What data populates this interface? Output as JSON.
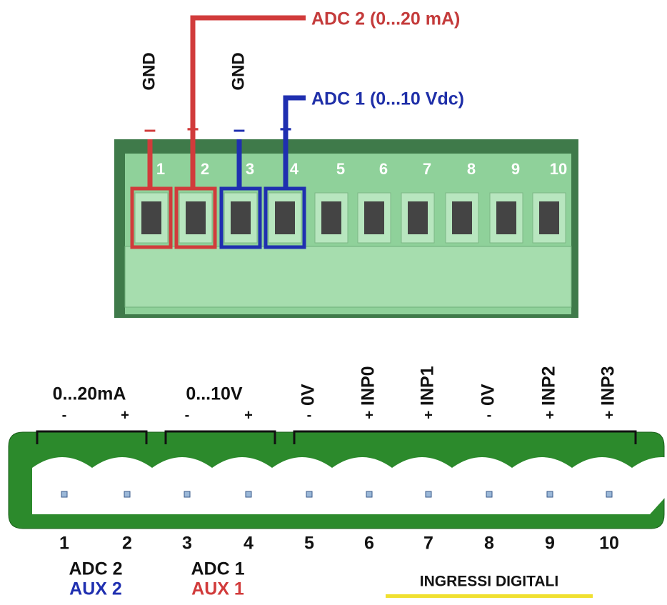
{
  "top": {
    "adc2_label": "ADC 2  (0...20 mA)",
    "adc1_label": "ADC 1 (0...10 Vdc)",
    "gnd_labels": [
      "GND",
      "GND"
    ],
    "polarity": [
      "–",
      "+",
      "–",
      "+"
    ],
    "terminals": [
      "1",
      "2",
      "3",
      "4",
      "5",
      "6",
      "7",
      "8",
      "9",
      "10"
    ]
  },
  "bottom": {
    "groups": [
      {
        "label": "0...20mA",
        "signs": [
          "-",
          "+"
        ]
      },
      {
        "label": "0...10V",
        "signs": [
          "-",
          "+"
        ]
      }
    ],
    "digital": [
      {
        "label": "0V",
        "sign": "-"
      },
      {
        "label": "INP0",
        "sign": "+"
      },
      {
        "label": "INP1",
        "sign": "+"
      },
      {
        "label": "0V",
        "sign": "-"
      },
      {
        "label": "INP2",
        "sign": "+"
      },
      {
        "label": "INP3",
        "sign": "+"
      }
    ],
    "pins": [
      "1",
      "2",
      "3",
      "4",
      "5",
      "6",
      "7",
      "8",
      "9",
      "10"
    ],
    "adc_labels": [
      "ADC 2",
      "ADC 1"
    ],
    "aux_labels": [
      "AUX 2",
      "AUX 1"
    ],
    "digital_title": "INGRESSI DIGITALI"
  }
}
